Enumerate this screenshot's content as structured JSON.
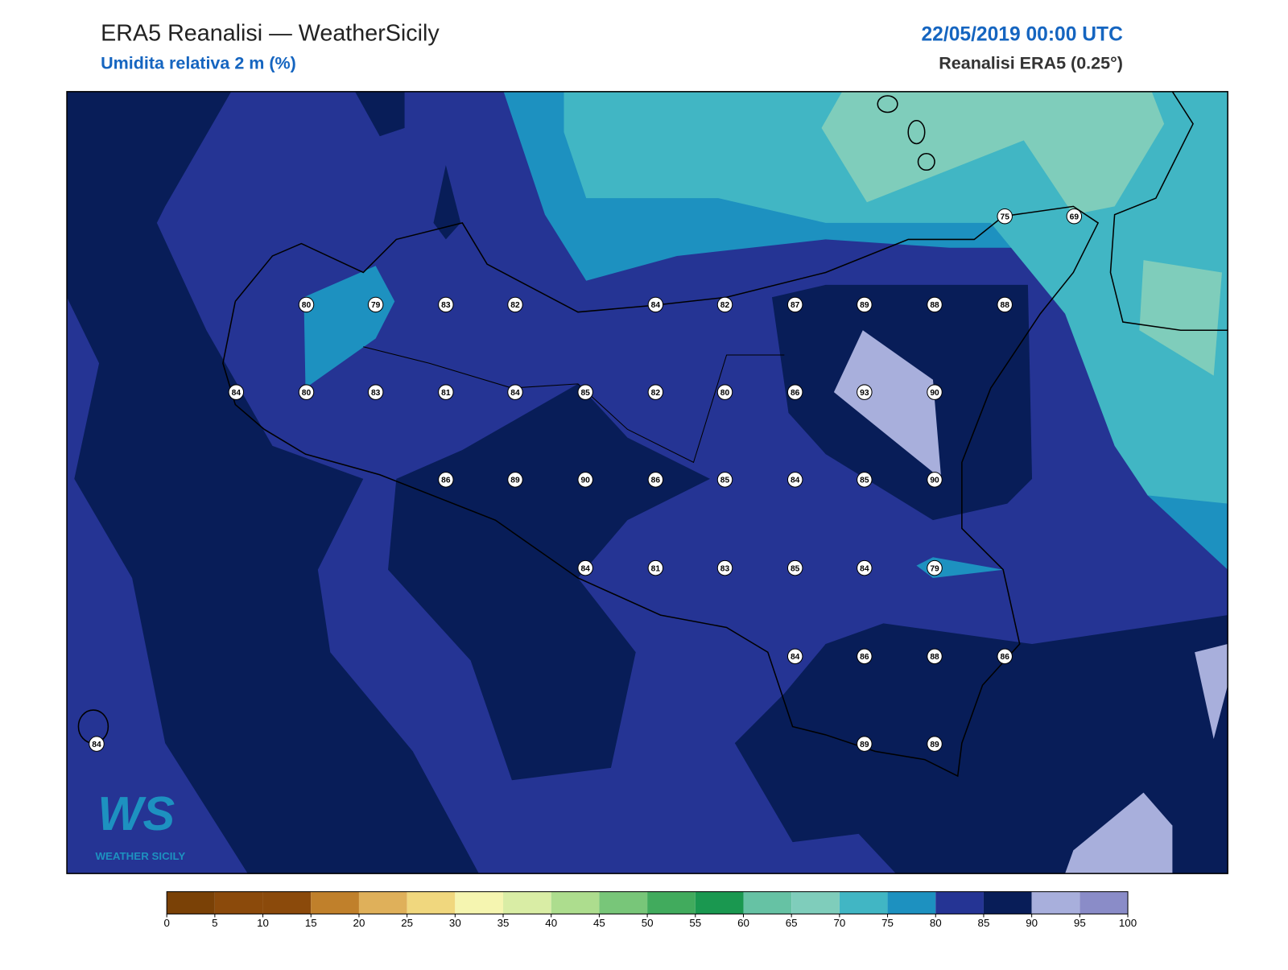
{
  "header": {
    "title": "ERA5 Reanalisi — WeatherSicily",
    "subtitle": "Umidita relativa 2 m (%)",
    "date": "22/05/2019 00:00 UTC",
    "source": "Reanalisi ERA5 (0.25°)"
  },
  "stations": {
    "values": [
      75,
      69,
      80,
      79,
      83,
      82,
      84,
      82,
      87,
      89,
      88,
      88,
      84,
      80,
      83,
      81,
      84,
      85,
      82,
      80,
      86,
      93,
      90,
      86,
      89,
      90,
      86,
      85,
      84,
      85,
      90,
      84,
      81,
      83,
      85,
      84,
      79,
      84,
      86,
      88,
      86,
      84,
      89,
      89
    ]
  },
  "colorbar": {
    "ticks": [
      0,
      5,
      10,
      15,
      20,
      25,
      30,
      35,
      40,
      45,
      50,
      55,
      60,
      65,
      70,
      75,
      80,
      85,
      90,
      95,
      100
    ],
    "colors": [
      "#7a4106",
      "#8b4a0b",
      "#8b4a0b",
      "#c0802b",
      "#dfb05a",
      "#f0d77e",
      "#f5f5b0",
      "#d9eda5",
      "#addd8e",
      "#78c679",
      "#41ab5d",
      "#1a9850",
      "#66c2a4",
      "#7fcdbb",
      "#41b6c4",
      "#1d91c0",
      "#253494",
      "#081d58",
      "#a8afdc",
      "#8a8cc8"
    ]
  },
  "logo": {
    "brand": "WS",
    "name": "WEATHER SICILY"
  }
}
